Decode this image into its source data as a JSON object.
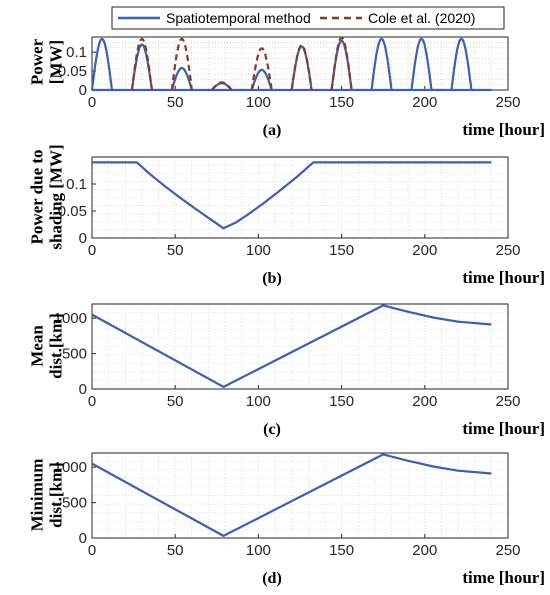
{
  "legend": {
    "entries": [
      {
        "label": "Spatiotemporal method",
        "color": "#3a5fb5",
        "dash": "solid"
      },
      {
        "label": "Cole et al. (2020)",
        "color": "#8b3a1a",
        "dash": "dashed"
      }
    ]
  },
  "chart_data": [
    {
      "id": "a",
      "type": "line",
      "panel_label": "(a)",
      "xlabel": "time [hour]",
      "ylabel_lines": [
        "Power",
        "[MW]"
      ],
      "xlim": [
        0,
        250
      ],
      "ylim": [
        0,
        0.14
      ],
      "xticks": [
        0,
        50,
        100,
        150,
        200,
        250
      ],
      "yticks": [
        0,
        0.05,
        0.1
      ],
      "ytick_labels": [
        "0",
        "0.05",
        "0.1"
      ],
      "grid": true,
      "series": [
        {
          "name": "Spatiotemporal method",
          "style": "daily_bumps",
          "peaks": [
            0.135,
            0.12,
            0.058,
            0.018,
            0.053,
            0.115,
            0.13,
            0.135,
            0.135,
            0.135
          ]
        },
        {
          "name": "Cole et al. (2020)",
          "style": "daily_bumps",
          "peaks": [
            null,
            0.135,
            0.135,
            0.02,
            0.11,
            0.118,
            0.138,
            null,
            null,
            null
          ]
        }
      ]
    },
    {
      "id": "b",
      "type": "line",
      "panel_label": "(b)",
      "xlabel": "time [hour]",
      "ylabel_lines": [
        "Power due to",
        "shading [MW]"
      ],
      "xlim": [
        0,
        250
      ],
      "ylim": [
        0,
        0.15
      ],
      "xticks": [
        0,
        50,
        100,
        150,
        200,
        250
      ],
      "yticks": [
        0,
        0.05,
        0.1
      ],
      "ytick_labels": [
        "0",
        "0.05",
        "0.1"
      ],
      "grid": true,
      "series": [
        {
          "name": "Spatiotemporal method",
          "x": [
            0,
            27,
            35,
            45,
            55,
            65,
            72,
            79,
            86,
            93,
            103,
            113,
            123,
            133,
            240
          ],
          "y": [
            0.14,
            0.14,
            0.118,
            0.093,
            0.07,
            0.048,
            0.033,
            0.018,
            0.028,
            0.042,
            0.064,
            0.088,
            0.113,
            0.14,
            0.14
          ]
        }
      ]
    },
    {
      "id": "c",
      "type": "line",
      "panel_label": "(c)",
      "xlabel": "time [hour]",
      "ylabel_lines": [
        "Mean",
        "dist.[km]"
      ],
      "xlim": [
        0,
        250
      ],
      "ylim": [
        0,
        1200
      ],
      "xticks": [
        0,
        50,
        100,
        150,
        200,
        250
      ],
      "yticks": [
        0,
        500,
        1000
      ],
      "ytick_labels": [
        "0",
        "500",
        "1000"
      ],
      "grid": true,
      "series": [
        {
          "name": "Spatiotemporal method",
          "x": [
            0,
            79,
            175,
            190,
            205,
            220,
            240
          ],
          "y": [
            1050,
            30,
            1180,
            1090,
            1010,
            950,
            910
          ]
        }
      ]
    },
    {
      "id": "d",
      "type": "line",
      "panel_label": "(d)",
      "xlabel": "time [hour]",
      "ylabel_lines": [
        "Minimum",
        "dist.[km]"
      ],
      "xlim": [
        0,
        250
      ],
      "ylim": [
        0,
        1200
      ],
      "xticks": [
        0,
        50,
        100,
        150,
        200,
        250
      ],
      "yticks": [
        0,
        500,
        1000
      ],
      "ytick_labels": [
        "0",
        "500",
        "1000"
      ],
      "grid": true,
      "series": [
        {
          "name": "Spatiotemporal method",
          "x": [
            0,
            79,
            175,
            190,
            205,
            220,
            240
          ],
          "y": [
            1050,
            30,
            1180,
            1090,
            1010,
            950,
            910
          ]
        }
      ]
    }
  ]
}
